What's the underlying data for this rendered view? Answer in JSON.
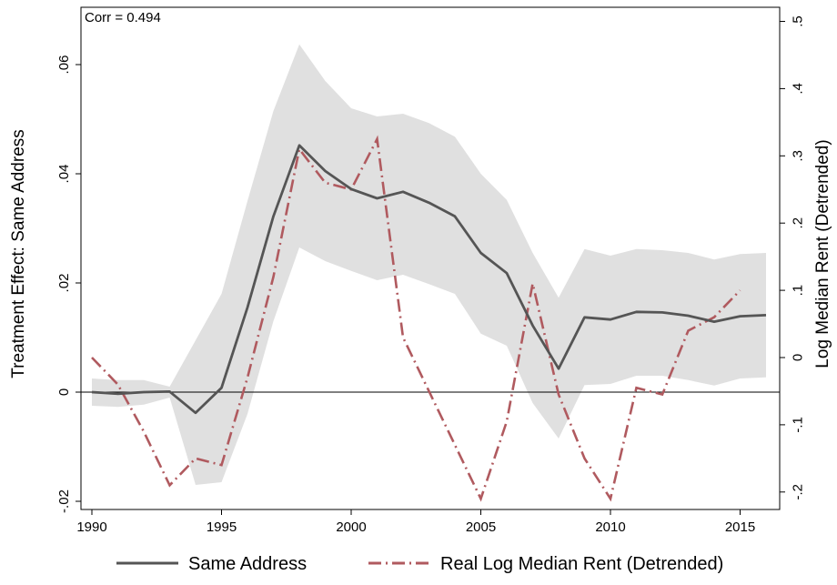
{
  "chart_data": {
    "type": "line",
    "annotation": "Corr = 0.494",
    "ylabel": "Treatment Effect: Same Address",
    "y2label": "Log Median Rent (Detrended)",
    "xlim": [
      1990,
      2016
    ],
    "ylim": [
      -0.0215,
      0.0705
    ],
    "y2lim": [
      -0.226,
      0.521
    ],
    "x_ticks": [
      1990,
      1995,
      2000,
      2005,
      2010,
      2015
    ],
    "x_tick_labels": [
      "1990",
      "1995",
      "2000",
      "2005",
      "2010",
      "2015"
    ],
    "y_ticks": [
      -0.02,
      0,
      0.02,
      0.04,
      0.06
    ],
    "y_tick_labels": [
      "-.02",
      "0",
      ".02",
      ".04",
      ".06"
    ],
    "y2_ticks": [
      -0.2,
      -0.1,
      0,
      0.1,
      0.2,
      0.3,
      0.4,
      0.5
    ],
    "y2_tick_labels": [
      "-.2",
      "-.1",
      "0",
      ".1",
      ".2",
      ".3",
      ".4",
      ".5"
    ],
    "grid": false,
    "legend_position": "bottom",
    "colors": {
      "same_address": "#555555",
      "rent": "#b05a5f",
      "band": "#e0e0e0"
    },
    "series": [
      {
        "name": "Same Address",
        "axis": "left",
        "x": [
          1990,
          1991,
          1992,
          1993,
          1994,
          1995,
          1996,
          1997,
          1998,
          1999,
          2000,
          2001,
          2002,
          2003,
          2004,
          2005,
          2006,
          2007,
          2008,
          2009,
          2010,
          2011,
          2012,
          2013,
          2014,
          2015,
          2016
        ],
        "values": [
          0.0,
          -0.0003,
          0.0,
          0.0001,
          -0.0038,
          0.0008,
          0.0155,
          0.0322,
          0.0452,
          0.0405,
          0.0372,
          0.0355,
          0.0367,
          0.0347,
          0.0322,
          0.0255,
          0.0218,
          0.0122,
          0.0043,
          0.0137,
          0.0133,
          0.0147,
          0.0146,
          0.014,
          0.0129,
          0.0139,
          0.0141
        ],
        "ci_lower": [
          -0.0025,
          -0.0027,
          -0.0023,
          -0.001,
          -0.017,
          -0.0165,
          -0.004,
          0.013,
          0.0265,
          0.024,
          0.0222,
          0.0205,
          0.0215,
          0.0198,
          0.018,
          0.0107,
          0.0085,
          -0.002,
          -0.0085,
          0.0013,
          0.0015,
          0.003,
          0.003,
          0.0022,
          0.0012,
          0.0025,
          0.0027
        ],
        "ci_upper": [
          0.0025,
          0.0022,
          0.0022,
          0.001,
          0.0095,
          0.018,
          0.035,
          0.0515,
          0.0637,
          0.057,
          0.052,
          0.0505,
          0.051,
          0.0493,
          0.0468,
          0.04,
          0.0352,
          0.0255,
          0.0173,
          0.0262,
          0.025,
          0.0262,
          0.026,
          0.0255,
          0.0243,
          0.0253,
          0.0255
        ]
      },
      {
        "name": "Real Log Median Rent (Detrended)",
        "axis": "right",
        "x": [
          1990,
          1991,
          1992,
          1993,
          1994,
          1995,
          1996,
          1997,
          1998,
          1999,
          2000,
          2001,
          2002,
          2003,
          2004,
          2005,
          2006,
          2007,
          2008,
          2009,
          2010,
          2011,
          2012,
          2013,
          2014,
          2015
        ],
        "values": [
          0.0,
          -0.04,
          -0.11,
          -0.19,
          -0.15,
          -0.16,
          -0.03,
          0.12,
          0.31,
          0.26,
          0.25,
          0.325,
          0.03,
          -0.05,
          -0.13,
          -0.21,
          -0.095,
          0.11,
          -0.055,
          -0.15,
          -0.21,
          -0.045,
          -0.055,
          0.04,
          0.06,
          0.1
        ]
      }
    ]
  }
}
